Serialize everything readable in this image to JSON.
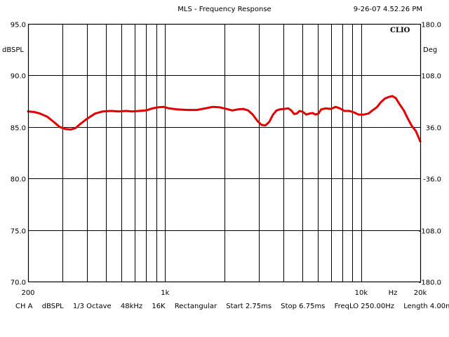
{
  "header": {
    "title": "MLS - Frequency Response",
    "timestamp": "9-26-07 4.52.26 PM"
  },
  "chart_data": {
    "type": "line",
    "title": "MLS - Frequency Response",
    "xlabel": "Hz",
    "ylabel": "dBSPL",
    "ylabel_right": "Deg",
    "x_scale": "log",
    "xlim": [
      200,
      20000
    ],
    "ylim": [
      70,
      95
    ],
    "y_right_lim": [
      -180,
      180
    ],
    "grid": true,
    "brand_label": "CLIO",
    "x_tick_labels": [
      {
        "value": 200,
        "label": "200"
      },
      {
        "value": 1000,
        "label": "1k"
      },
      {
        "value": 10000,
        "label": "10k"
      },
      {
        "value": 14500,
        "label": "Hz"
      },
      {
        "value": 20000,
        "label": "20k"
      }
    ],
    "x_gridlines": [
      200,
      300,
      400,
      500,
      600,
      700,
      800,
      900,
      1000,
      2000,
      3000,
      4000,
      5000,
      6000,
      7000,
      8000,
      9000,
      10000,
      20000
    ],
    "y_ticks_left": [
      {
        "value": 95,
        "label": "95.0"
      },
      {
        "value": 90,
        "label": "90.0"
      },
      {
        "value": 85,
        "label": "85.0"
      },
      {
        "value": 80,
        "label": "80.0"
      },
      {
        "value": 75,
        "label": "75.0"
      },
      {
        "value": 70,
        "label": "70.0"
      }
    ],
    "y_ticks_right": [
      "180.0",
      "108.0",
      "36.0",
      "-36.0",
      "-108.0",
      "-180.0"
    ],
    "series": [
      {
        "color": "#e00000",
        "points": [
          [
            200,
            86.5
          ],
          [
            215,
            86.45
          ],
          [
            230,
            86.3
          ],
          [
            250,
            86.0
          ],
          [
            270,
            85.5
          ],
          [
            290,
            85.0
          ],
          [
            310,
            84.8
          ],
          [
            330,
            84.75
          ],
          [
            350,
            84.9
          ],
          [
            370,
            85.3
          ],
          [
            400,
            85.8
          ],
          [
            440,
            86.3
          ],
          [
            480,
            86.5
          ],
          [
            530,
            86.55
          ],
          [
            580,
            86.5
          ],
          [
            630,
            86.55
          ],
          [
            680,
            86.5
          ],
          [
            740,
            86.55
          ],
          [
            800,
            86.6
          ],
          [
            860,
            86.8
          ],
          [
            920,
            86.9
          ],
          [
            980,
            86.95
          ],
          [
            1050,
            86.8
          ],
          [
            1150,
            86.7
          ],
          [
            1300,
            86.65
          ],
          [
            1450,
            86.65
          ],
          [
            1600,
            86.8
          ],
          [
            1750,
            86.95
          ],
          [
            1900,
            86.9
          ],
          [
            2050,
            86.75
          ],
          [
            2200,
            86.6
          ],
          [
            2350,
            86.7
          ],
          [
            2500,
            86.75
          ],
          [
            2650,
            86.6
          ],
          [
            2800,
            86.2
          ],
          [
            2950,
            85.6
          ],
          [
            3100,
            85.2
          ],
          [
            3250,
            85.15
          ],
          [
            3400,
            85.5
          ],
          [
            3550,
            86.2
          ],
          [
            3700,
            86.6
          ],
          [
            3850,
            86.7
          ],
          [
            4050,
            86.75
          ],
          [
            4250,
            86.8
          ],
          [
            4400,
            86.6
          ],
          [
            4550,
            86.25
          ],
          [
            4700,
            86.3
          ],
          [
            4850,
            86.55
          ],
          [
            5050,
            86.45
          ],
          [
            5250,
            86.2
          ],
          [
            5450,
            86.3
          ],
          [
            5650,
            86.35
          ],
          [
            5850,
            86.2
          ],
          [
            6050,
            86.3
          ],
          [
            6250,
            86.7
          ],
          [
            6600,
            86.8
          ],
          [
            7000,
            86.75
          ],
          [
            7400,
            86.95
          ],
          [
            7800,
            86.8
          ],
          [
            8200,
            86.55
          ],
          [
            8700,
            86.55
          ],
          [
            9200,
            86.4
          ],
          [
            9700,
            86.2
          ],
          [
            10300,
            86.2
          ],
          [
            10900,
            86.3
          ],
          [
            11400,
            86.6
          ],
          [
            12000,
            86.9
          ],
          [
            12600,
            87.4
          ],
          [
            13200,
            87.75
          ],
          [
            13800,
            87.9
          ],
          [
            14400,
            88.0
          ],
          [
            15000,
            87.8
          ],
          [
            15700,
            87.2
          ],
          [
            16500,
            86.6
          ],
          [
            17300,
            85.8
          ],
          [
            18100,
            85.1
          ],
          [
            19000,
            84.6
          ],
          [
            20000,
            83.6
          ]
        ]
      }
    ]
  },
  "statusbar": {
    "channel": "CH A",
    "units": "dBSPL",
    "smoothing": "1/3 Octave",
    "sample_rate": "48kHz",
    "size": "16K",
    "window": "Rectangular",
    "start": "Start 2.75ms",
    "stop": "Stop 6.75ms",
    "freq_lo": "FreqLO 250.00Hz",
    "length": "Length 4.00ms"
  }
}
